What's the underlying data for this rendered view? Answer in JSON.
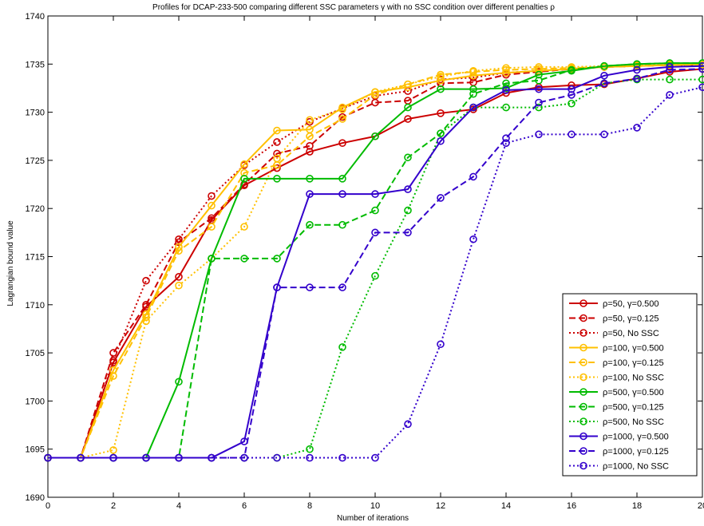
{
  "chart_data": {
    "type": "line",
    "title": "Profiles for DCAP-233-500 comparing different SSC parameters γ with no SSC condition over different penalties ρ",
    "xlabel": "Number of iterations",
    "ylabel": "Lagrangian bound value",
    "xlim": [
      0,
      20
    ],
    "ylim": [
      1690,
      1740
    ],
    "xticks": [
      0,
      2,
      4,
      6,
      8,
      10,
      12,
      14,
      16,
      18,
      20
    ],
    "xtick_labels": [
      "0",
      "2",
      "4",
      "6",
      "8",
      "10",
      "12",
      "14",
      "16",
      "18",
      "20"
    ],
    "yticks": [
      1690,
      1695,
      1700,
      1705,
      1710,
      1715,
      1720,
      1725,
      1730,
      1735,
      1740
    ],
    "ytick_labels": [
      "1690",
      "1695",
      "1700",
      "1705",
      "1710",
      "1715",
      "1720",
      "1725",
      "1730",
      "1735",
      "1740"
    ],
    "grid": false,
    "legend_position": "bottom-right",
    "x": [
      0,
      1,
      2,
      3,
      4,
      5,
      6,
      7,
      8,
      9,
      10,
      11,
      12,
      13,
      14,
      15,
      16,
      17,
      18,
      19,
      20
    ],
    "series": [
      {
        "name": "ρ=50, γ=0.500",
        "color": "#cc0000",
        "style": "solid",
        "values": [
          1694.1,
          1694.1,
          1704.0,
          1709.8,
          1712.9,
          1718.8,
          1722.4,
          1724.2,
          1725.9,
          1726.8,
          1727.5,
          1729.3,
          1729.9,
          1730.3,
          1732.0,
          1732.6,
          1732.8,
          1732.9,
          1733.5,
          1734.2,
          1734.5
        ]
      },
      {
        "name": "ρ=50, γ=0.125",
        "color": "#cc0000",
        "style": "dashed",
        "values": [
          1694.1,
          1694.1,
          1705.0,
          1710.0,
          1716.5,
          1719.0,
          1722.5,
          1725.7,
          1726.5,
          1729.5,
          1731.0,
          1731.2,
          1733.0,
          1733.1,
          1733.9,
          1734.2,
          1734.5,
          1734.7,
          1734.8,
          1734.9,
          1734.9
        ]
      },
      {
        "name": "ρ=50, No SSC",
        "color": "#cc0000",
        "style": "dotted",
        "values": [
          1694.1,
          1694.1,
          1704.2,
          1712.5,
          1716.8,
          1721.3,
          1724.5,
          1726.9,
          1729.0,
          1730.4,
          1731.7,
          1732.2,
          1733.4,
          1733.6,
          1734.1,
          1734.3,
          1734.5,
          1734.7,
          1734.8,
          1734.9,
          1734.9
        ]
      },
      {
        "name": "ρ=100, γ=0.500",
        "color": "#ffc000",
        "style": "solid",
        "values": [
          1694.1,
          1694.1,
          1703.2,
          1709.0,
          1716.0,
          1720.3,
          1724.6,
          1728.1,
          1728.2,
          1730.5,
          1732.1,
          1732.6,
          1733.3,
          1733.8,
          1734.1,
          1734.3,
          1734.5,
          1734.7,
          1734.8,
          1734.9,
          1735.0
        ]
      },
      {
        "name": "ρ=100, γ=0.125",
        "color": "#ffc000",
        "style": "dashed",
        "values": [
          1694.1,
          1694.1,
          1702.6,
          1708.7,
          1715.6,
          1718.1,
          1723.7,
          1724.5,
          1727.5,
          1729.3,
          1731.8,
          1732.9,
          1733.9,
          1734.2,
          1734.4,
          1734.5,
          1734.6,
          1734.7,
          1734.8,
          1734.9,
          1734.9
        ]
      },
      {
        "name": "ρ=100, No SSC",
        "color": "#ffc000",
        "style": "dotted",
        "values": [
          1694.1,
          1694.1,
          1694.9,
          1708.3,
          1712.0,
          1714.8,
          1718.1,
          1725.2,
          1729.2,
          1730.3,
          1732.1,
          1732.9,
          1733.7,
          1734.3,
          1734.6,
          1734.7,
          1734.7,
          1734.8,
          1734.9,
          1735.0,
          1735.0
        ]
      },
      {
        "name": "ρ=500, γ=0.500",
        "color": "#00bb00",
        "style": "solid",
        "values": [
          1694.1,
          1694.1,
          1694.1,
          1694.1,
          1702.0,
          1714.8,
          1723.1,
          1723.1,
          1723.1,
          1723.1,
          1727.5,
          1730.5,
          1732.4,
          1732.4,
          1732.5,
          1733.9,
          1734.3,
          1734.8,
          1735.0,
          1735.1,
          1735.1
        ]
      },
      {
        "name": "ρ=500, γ=0.125",
        "color": "#00bb00",
        "style": "dashed",
        "values": [
          1694.1,
          1694.1,
          1694.1,
          1694.1,
          1694.1,
          1714.8,
          1714.8,
          1714.8,
          1718.3,
          1718.3,
          1719.8,
          1725.3,
          1727.8,
          1731.9,
          1733.0,
          1733.3,
          1734.4,
          1734.8,
          1735.0,
          1735.1,
          1735.1
        ]
      },
      {
        "name": "ρ=500, No SSC",
        "color": "#00bb00",
        "style": "dotted",
        "values": [
          1694.1,
          1694.1,
          1694.1,
          1694.1,
          1694.1,
          1694.1,
          1694.1,
          1694.1,
          1695.0,
          1705.6,
          1713.0,
          1719.8,
          1727.8,
          1730.5,
          1730.5,
          1730.5,
          1730.9,
          1733.0,
          1733.4,
          1733.4,
          1733.4
        ]
      },
      {
        "name": "ρ=1000, γ=0.500",
        "color": "#3300cc",
        "style": "solid",
        "values": [
          1694.1,
          1694.1,
          1694.1,
          1694.1,
          1694.1,
          1694.1,
          1695.8,
          1711.8,
          1721.5,
          1721.5,
          1721.5,
          1722.0,
          1727.0,
          1730.5,
          1732.3,
          1732.4,
          1732.4,
          1733.8,
          1734.4,
          1734.7,
          1734.8
        ]
      },
      {
        "name": "ρ=1000, γ=0.125",
        "color": "#3300cc",
        "style": "dashed",
        "values": [
          1694.1,
          1694.1,
          1694.1,
          1694.1,
          1694.1,
          1694.1,
          1694.1,
          1711.8,
          1711.8,
          1711.8,
          1717.5,
          1717.5,
          1721.1,
          1723.3,
          1727.3,
          1731.0,
          1731.8,
          1733.0,
          1733.5,
          1734.4,
          1734.5
        ]
      },
      {
        "name": "ρ=1000, No SSC",
        "color": "#3300cc",
        "style": "dotted",
        "values": [
          1694.1,
          1694.1,
          1694.1,
          1694.1,
          1694.1,
          1694.1,
          1694.1,
          1694.1,
          1694.1,
          1694.1,
          1694.1,
          1697.6,
          1705.9,
          1716.8,
          1726.8,
          1727.7,
          1727.7,
          1727.7,
          1728.4,
          1731.8,
          1732.6
        ]
      }
    ]
  }
}
